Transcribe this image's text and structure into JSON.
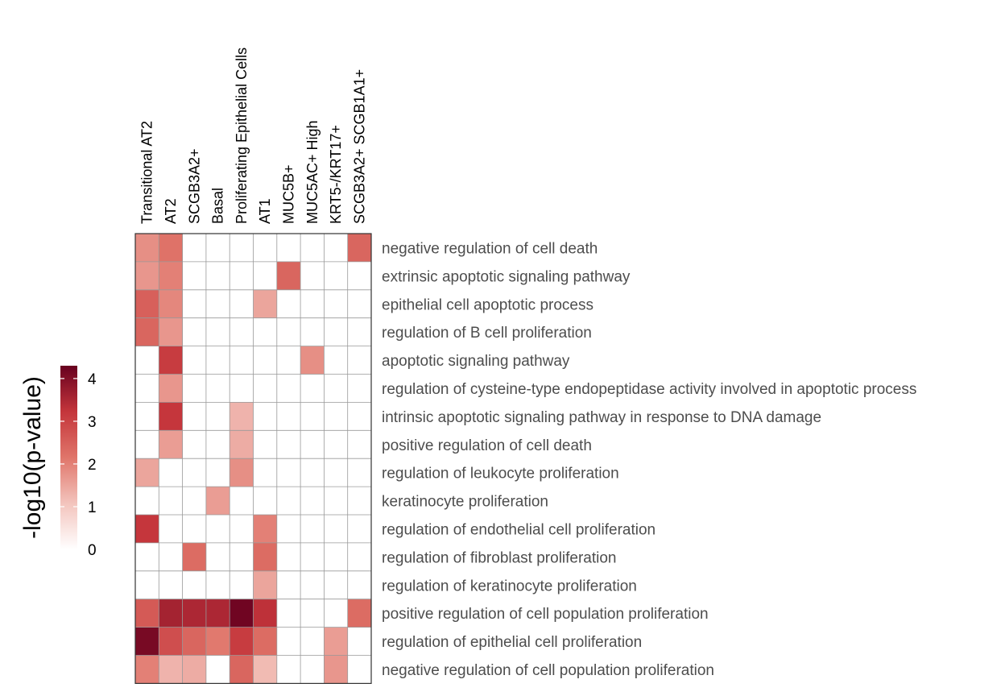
{
  "chart_data": {
    "type": "heatmap",
    "columns": [
      "Transitional AT2",
      "AT2",
      "SCGB3A2+",
      "Basal",
      "Proliferating Epithelial Cells",
      "AT1",
      "MUC5B+",
      "MUC5AC+ High",
      "KRT5-/KRT17+",
      "SCGB3A2+ SCGB1A1+"
    ],
    "rows": [
      "negative regulation of cell death",
      "extrinsic apoptotic signaling pathway",
      "epithelial cell apoptotic process",
      "regulation of B cell proliferation",
      "apoptotic signaling pathway",
      "regulation of cysteine-type endopeptidase activity involved in apoptotic process",
      "intrinsic apoptotic signaling pathway in response to DNA damage",
      "positive regulation of cell death",
      "regulation of leukocyte proliferation",
      "keratinocyte proliferation",
      "regulation of endothelial cell proliferation",
      "regulation of fibroblast proliferation",
      "regulation of keratinocyte proliferation",
      "positive regulation of cell population proliferation",
      "regulation of epithelial cell proliferation",
      "negative regulation of cell population proliferation"
    ],
    "values": [
      [
        1.8,
        2.2,
        null,
        null,
        null,
        null,
        null,
        null,
        null,
        2.4
      ],
      [
        1.7,
        2.0,
        null,
        null,
        null,
        null,
        2.4,
        null,
        null,
        null
      ],
      [
        2.5,
        1.9,
        null,
        null,
        null,
        1.5,
        null,
        null,
        null,
        null
      ],
      [
        2.4,
        1.7,
        null,
        null,
        null,
        null,
        null,
        null,
        null,
        null
      ],
      [
        null,
        3.1,
        null,
        null,
        null,
        null,
        null,
        1.8,
        null,
        null
      ],
      [
        null,
        1.7,
        null,
        null,
        null,
        null,
        null,
        null,
        null,
        null
      ],
      [
        null,
        3.2,
        null,
        null,
        1.3,
        null,
        null,
        null,
        null,
        null
      ],
      [
        null,
        1.6,
        null,
        null,
        1.4,
        null,
        null,
        null,
        null,
        null
      ],
      [
        1.5,
        null,
        null,
        null,
        1.8,
        null,
        null,
        null,
        null,
        null
      ],
      [
        null,
        null,
        null,
        1.6,
        null,
        null,
        null,
        null,
        null,
        null
      ],
      [
        3.2,
        null,
        null,
        null,
        null,
        2.0,
        null,
        null,
        null,
        null
      ],
      [
        null,
        null,
        2.3,
        null,
        null,
        2.3,
        null,
        null,
        null,
        null
      ],
      [
        null,
        null,
        null,
        null,
        null,
        1.5,
        null,
        null,
        null,
        null
      ],
      [
        2.6,
        3.6,
        3.5,
        3.5,
        4.2,
        3.3,
        null,
        null,
        null,
        2.3
      ],
      [
        4.1,
        2.8,
        2.4,
        2.1,
        3.1,
        2.3,
        null,
        null,
        1.6,
        null
      ],
      [
        2.0,
        1.3,
        1.4,
        null,
        2.4,
        1.2,
        null,
        null,
        1.7,
        null
      ]
    ],
    "legend": {
      "title": "-log10(p-value)",
      "ticks": [
        0,
        1,
        2,
        3,
        4
      ],
      "range": [
        0,
        4.3
      ],
      "colors": [
        "#ffffff",
        "#f3c4bd",
        "#e0756a",
        "#c4353b",
        "#67001f"
      ]
    },
    "missing_color": "#ffffff",
    "grid_color": "#999999"
  }
}
